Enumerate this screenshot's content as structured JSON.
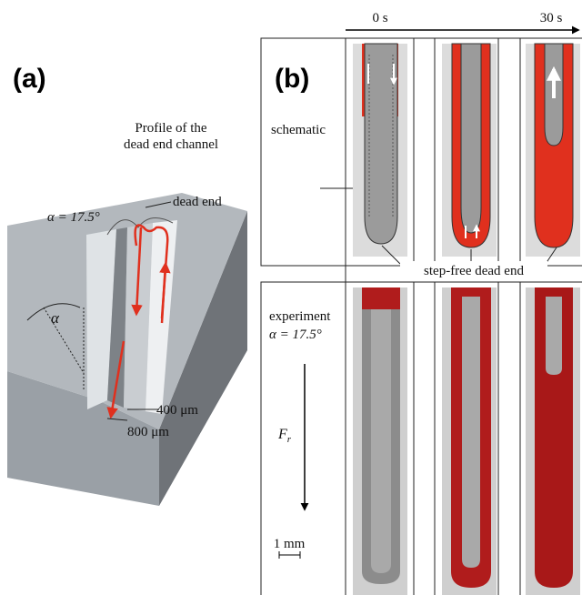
{
  "panel_a": {
    "label": "(a)",
    "title": [
      "Profile of the",
      "dead end channel"
    ],
    "angle_label": "α = 17.5°",
    "dead_end": "dead end",
    "alpha": "α",
    "width_inner": "400 μm",
    "width_outer": "800 μm"
  },
  "panel_b": {
    "label": "(b)",
    "time_start": "0 s",
    "time_end": "30 s",
    "row_schematic": "schematic",
    "annotation": "step-free dead end",
    "row_experiment": "experiment",
    "experiment_angle": "α = 17.5°",
    "force": "F",
    "force_sub": "r",
    "scale": "1 mm"
  }
}
